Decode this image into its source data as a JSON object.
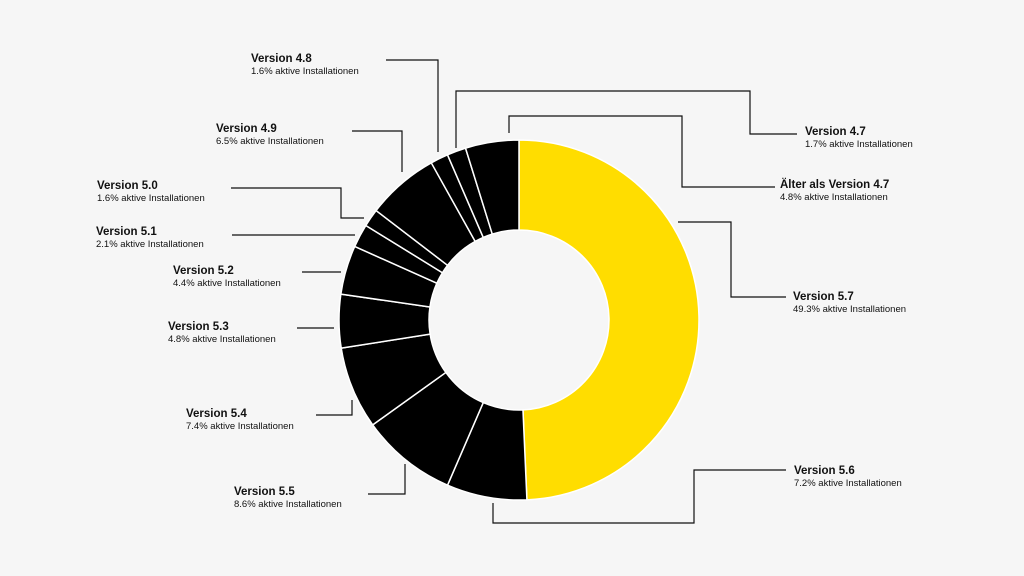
{
  "chart_data": {
    "type": "pie",
    "variant": "donut",
    "suffix": "aktive Installationen",
    "colors": {
      "highlight": "#ffdd00",
      "other": "#000000",
      "separator": "#ffffff",
      "background": "#f6f6f6"
    },
    "slices": [
      {
        "label": "Version 5.7",
        "value": 49.3,
        "highlight": true
      },
      {
        "label": "Version 5.6",
        "value": 7.2
      },
      {
        "label": "Version 5.5",
        "value": 8.6
      },
      {
        "label": "Version 5.4",
        "value": 7.4
      },
      {
        "label": "Version 5.3",
        "value": 4.8
      },
      {
        "label": "Version 5.2",
        "value": 4.4
      },
      {
        "label": "Version 5.1",
        "value": 2.1
      },
      {
        "label": "Version 5.0",
        "value": 1.6
      },
      {
        "label": "Version 4.9",
        "value": 6.5
      },
      {
        "label": "Version 4.8",
        "value": 1.6
      },
      {
        "label": "Version 4.7",
        "value": 1.7
      },
      {
        "label": "Älter als Version 4.7",
        "value": 4.8
      }
    ]
  }
}
